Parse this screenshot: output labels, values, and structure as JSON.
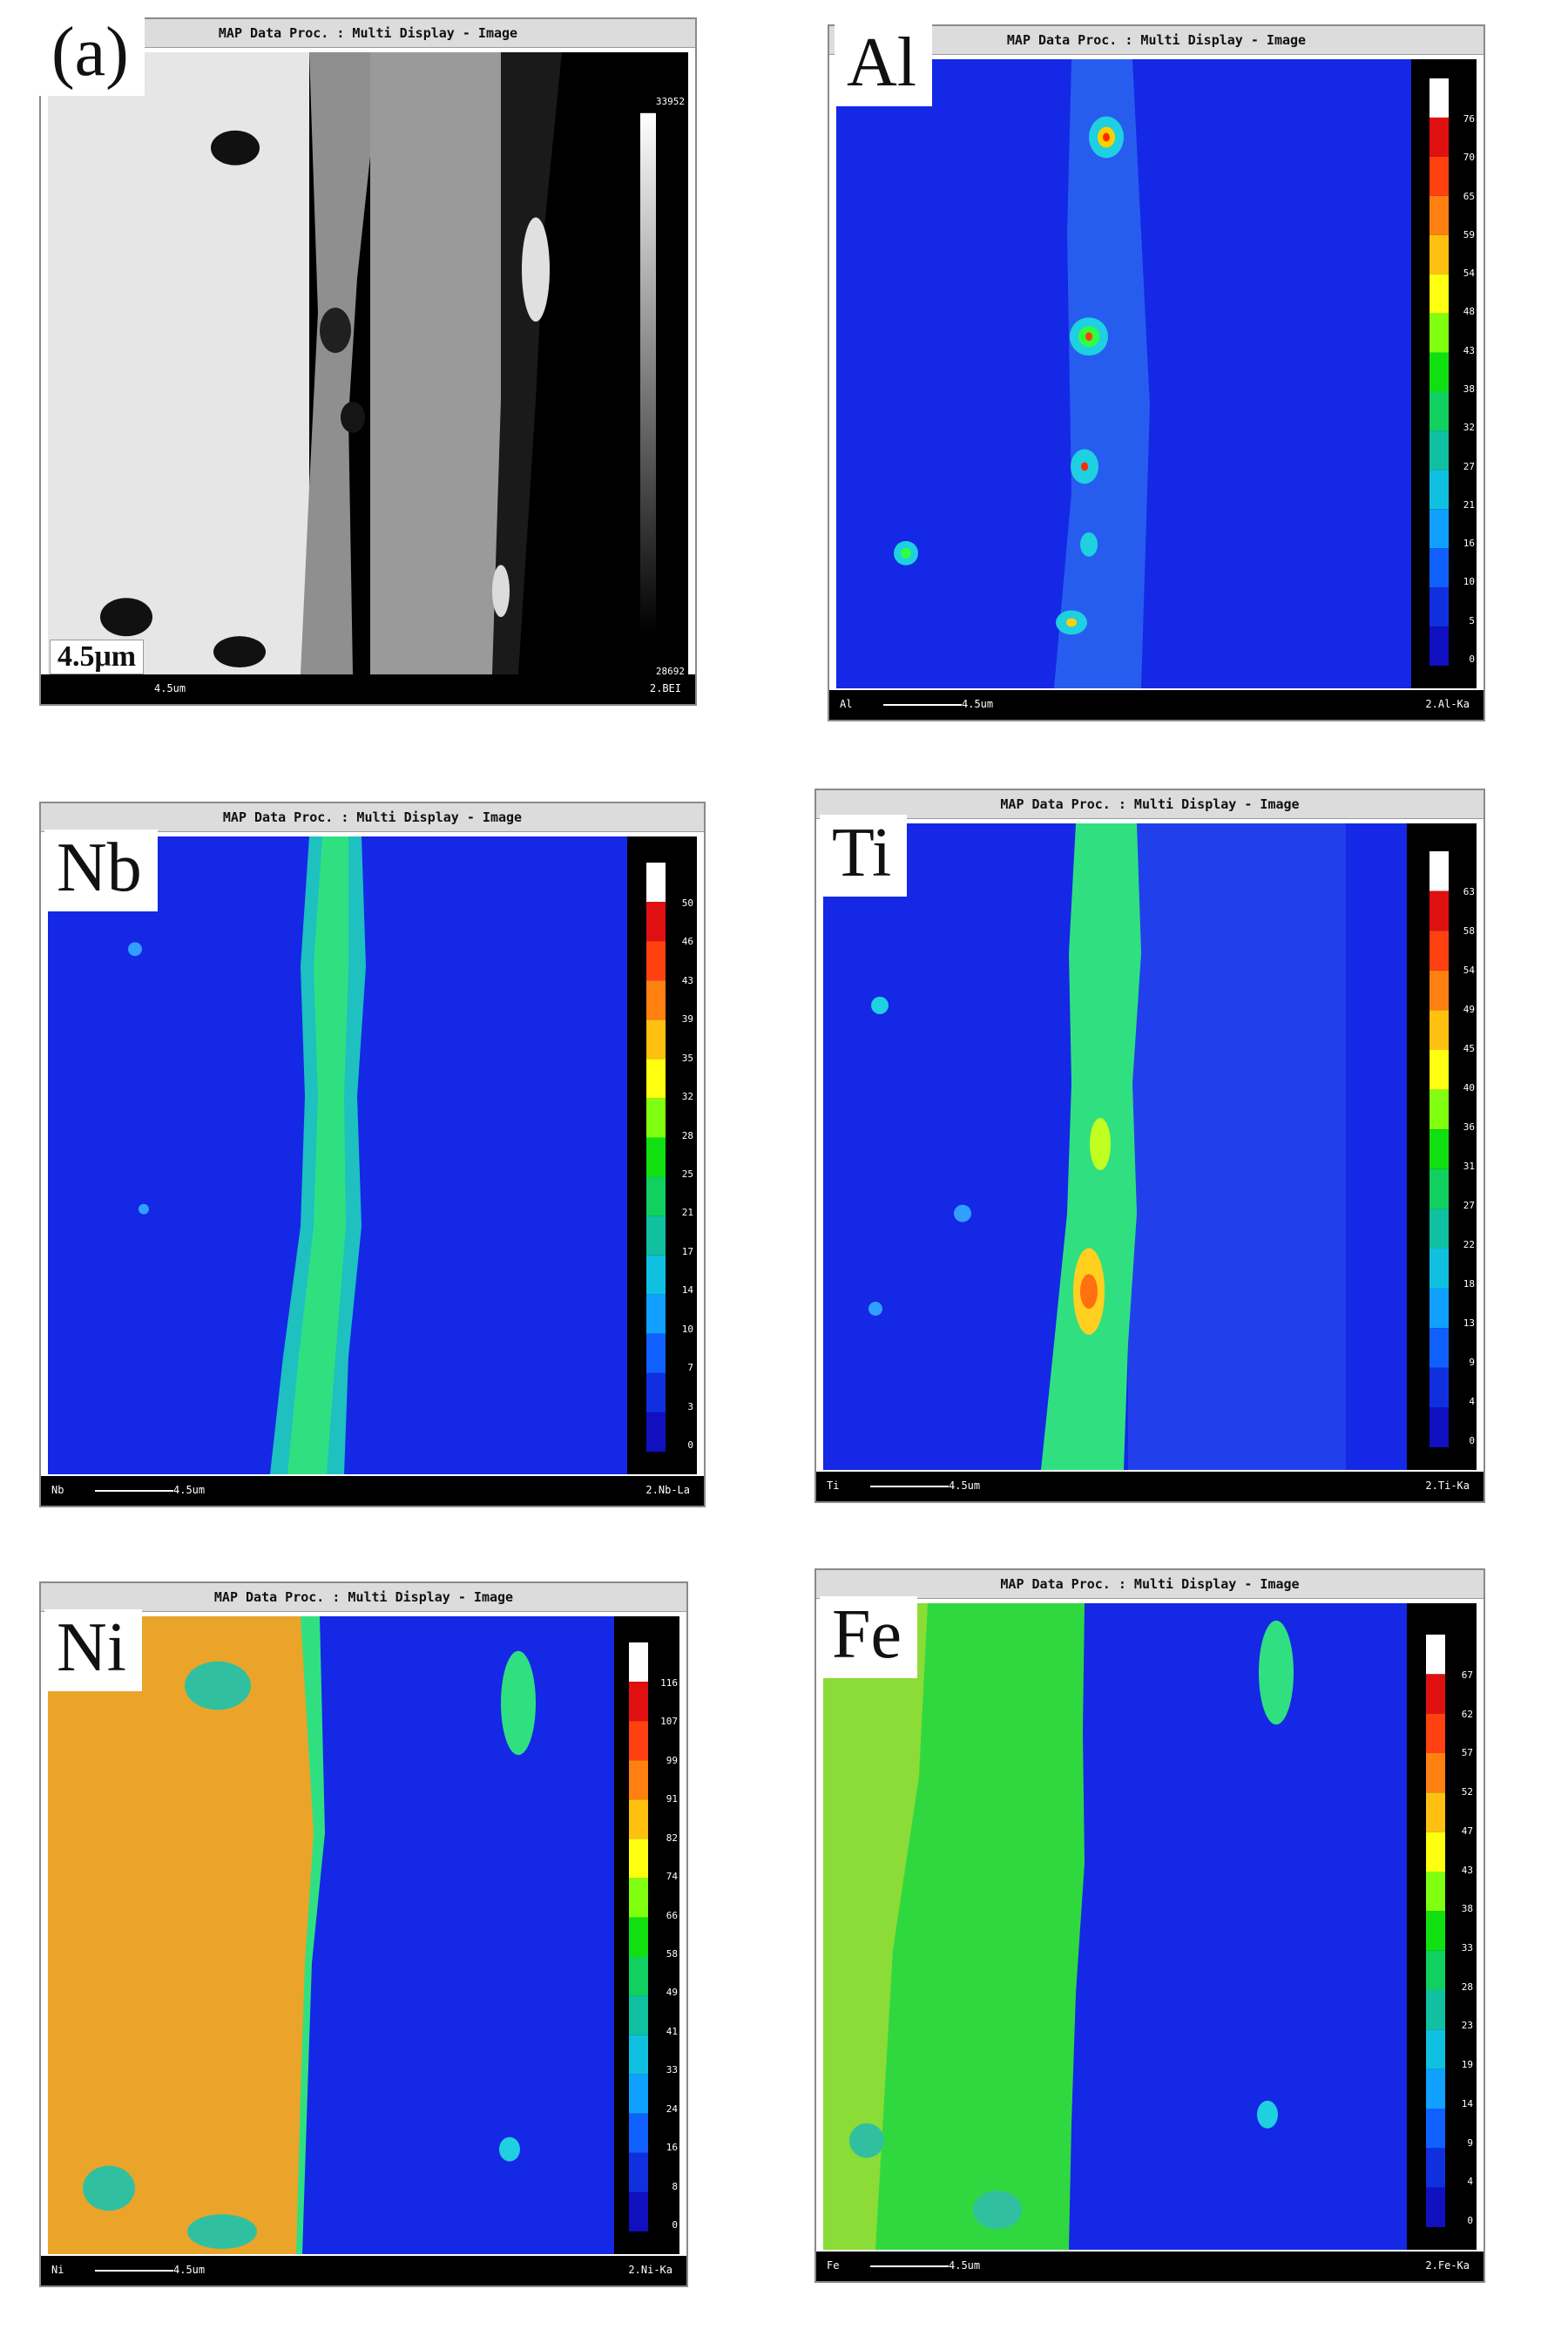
{
  "window_title": "MAP Data Proc. : Multi Display - Image",
  "scale_text": "4.5um",
  "panels": [
    {
      "label": "(a)",
      "element": "",
      "channel": "2.BEI",
      "scale_top": "33952",
      "scale_bottom": "28692",
      "scale_tag": "4.5μm",
      "ticks": []
    },
    {
      "label": "Al",
      "element": "Al",
      "channel": "2.Al-Ka",
      "ticks": [
        "76",
        "70",
        "65",
        "59",
        "54",
        "48",
        "43",
        "38",
        "32",
        "27",
        "21",
        "16",
        "10",
        "5",
        "0"
      ]
    },
    {
      "label": "Nb",
      "element": "Nb",
      "channel": "2.Nb-La",
      "ticks": [
        "50",
        "46",
        "43",
        "39",
        "35",
        "32",
        "28",
        "25",
        "21",
        "17",
        "14",
        "10",
        "7",
        "3",
        "0"
      ]
    },
    {
      "label": "Ti",
      "element": "Ti",
      "channel": "2.Ti-Ka",
      "ticks": [
        "63",
        "58",
        "54",
        "49",
        "45",
        "40",
        "36",
        "31",
        "27",
        "22",
        "18",
        "13",
        "9",
        "4",
        "0"
      ]
    },
    {
      "label": "Ni",
      "element": "Ni",
      "channel": "2.Ni-Ka",
      "ticks": [
        "116",
        "107",
        "99",
        "91",
        "82",
        "74",
        "66",
        "58",
        "49",
        "41",
        "33",
        "24",
        "16",
        "8",
        "0"
      ]
    },
    {
      "label": "Fe",
      "element": "Fe",
      "channel": "2.Fe-Ka",
      "ticks": [
        "67",
        "62",
        "57",
        "52",
        "47",
        "43",
        "38",
        "33",
        "28",
        "23",
        "19",
        "14",
        "9",
        "4",
        "0"
      ]
    }
  ]
}
